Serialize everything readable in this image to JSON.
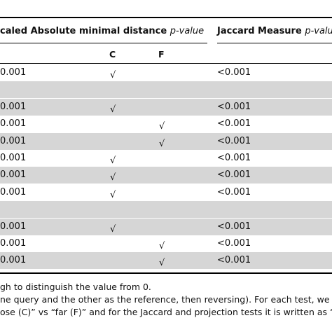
{
  "table": {
    "header": {
      "distance_title": "caled Absolute minimal distance",
      "distance_pvalue": "p-value",
      "jaccard_title": "Jaccard Measure",
      "jaccard_pvalue": "p-valu"
    },
    "subheader": {
      "c": "C",
      "f": "F"
    },
    "rows": [
      [
        "0.001",
        "√",
        null,
        "<0.001"
      ],
      [
        null,
        null,
        null,
        null
      ],
      [
        "0.001",
        "√",
        null,
        "<0.001"
      ],
      [
        "0.001",
        null,
        "√",
        "<0.001"
      ],
      [
        "0.001",
        null,
        "√",
        "<0.001"
      ],
      [
        "0.001",
        "√",
        null,
        "<0.001"
      ],
      [
        "0.001",
        "√",
        null,
        "<0.001"
      ],
      [
        "0.001",
        "√",
        null,
        "<0.001"
      ],
      [
        null,
        null,
        null,
        null
      ],
      [
        "0.001",
        "√",
        null,
        "<0.001"
      ],
      [
        "0.001",
        null,
        "√",
        "<0.001"
      ],
      [
        "0.001",
        null,
        "√",
        "<0.001"
      ]
    ]
  },
  "footnotes": [
    "gh to distinguish the value from 0.",
    "ne query and the other as the reference, then reversing). For each test, we h",
    "ose (C)” vs “far (F)” and for the Jaccard and projection tests it is written as “"
  ]
}
